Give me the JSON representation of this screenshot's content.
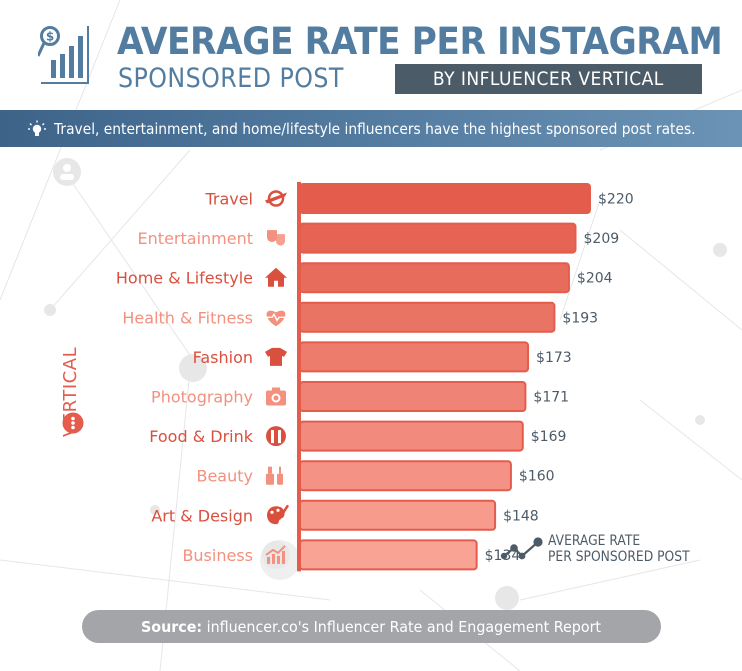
{
  "header": {
    "title_main": "AVERAGE RATE PER INSTAGRAM",
    "title_sub": "SPONSORED POST",
    "title_badge": "BY INFLUENCER VERTICAL",
    "logo_icon": "chart-magnifier-dollar-icon"
  },
  "banner": {
    "icon": "lightbulb-icon",
    "text": "Travel, entertainment, and home/lifestyle influencers have the highest sponsored post rates."
  },
  "colors": {
    "title_blue": "#537da0",
    "badge_gray": "#4c5b68",
    "bar_dark": "#e35c4c",
    "bar_light": "#f9a395",
    "label_dark": "#d9503f",
    "label_light": "#f3907f",
    "value_text": "#4c5b68",
    "source_bg": "#a3a5a8"
  },
  "chart_data": {
    "type": "bar",
    "orientation": "horizontal",
    "title": "Average Rate per Instagram Sponsored Post by Influencer Vertical",
    "xlabel": "",
    "ylabel": "VERTICAL",
    "value_prefix": "$",
    "xlim": [
      0,
      220
    ],
    "grid": false,
    "legend": "bottom-right",
    "series": [
      {
        "name": "AVERAGE RATE PER SPONSORED POST",
        "values": [
          220,
          209,
          204,
          193,
          173,
          171,
          169,
          160,
          148,
          134
        ]
      }
    ],
    "categories": [
      "Travel",
      "Entertainment",
      "Home & Lifestyle",
      "Health & Fitness",
      "Fashion",
      "Photography",
      "Food & Drink",
      "Beauty",
      "Art & Design",
      "Business"
    ],
    "category_icons": [
      "airplane-globe-icon",
      "theater-masks-icon",
      "house-icon",
      "heartbeat-icon",
      "t-shirt-icon",
      "camera-icon",
      "fork-knife-icon",
      "lipstick-nailpolish-icon",
      "paint-palette-icon",
      "rising-chart-icon"
    ],
    "value_labels": [
      "$220",
      "$209",
      "$204",
      "$193",
      "$173",
      "$171",
      "$169",
      "$160",
      "$148",
      "$134"
    ]
  },
  "axis": {
    "title": "VERTICAL",
    "icon": "more-dots-icon"
  },
  "legend": {
    "icon": "line-chart-dots-icon",
    "line1": "AVERAGE RATE",
    "line2": "PER SPONSORED POST"
  },
  "source": {
    "label": "Source:",
    "text": " influencer.co's Influencer Rate and Engagement Report"
  }
}
